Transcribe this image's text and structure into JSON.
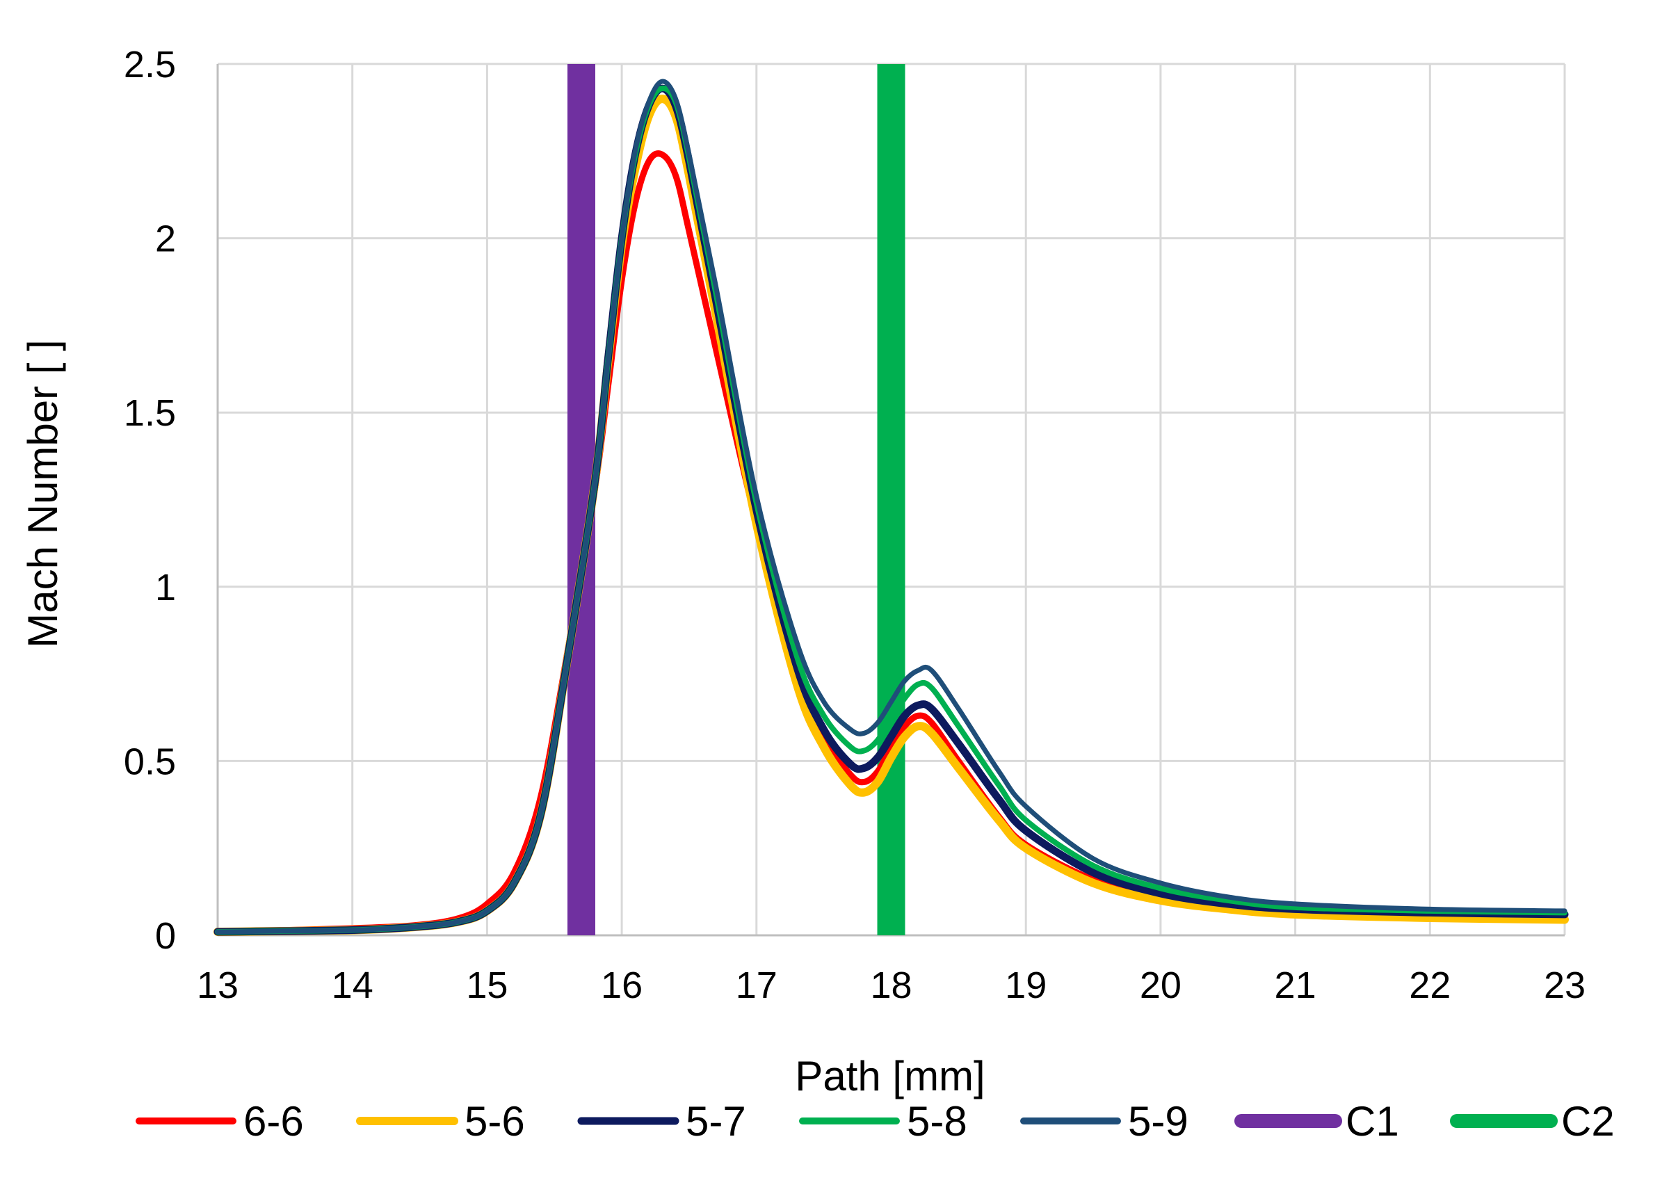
{
  "chart_data": {
    "type": "line",
    "title": "",
    "xlabel": "Path [mm]",
    "ylabel": "Mach Number [ ]",
    "xlim": [
      13,
      23
    ],
    "ylim": [
      0,
      2.5
    ],
    "xticks": [
      13,
      14,
      15,
      16,
      17,
      18,
      19,
      20,
      21,
      22,
      23
    ],
    "xtick_labels": [
      "13",
      "14",
      "15",
      "16",
      "17",
      "18",
      "19",
      "20",
      "21",
      "22",
      "23"
    ],
    "yticks": [
      0,
      0.5,
      1,
      1.5,
      2,
      2.5
    ],
    "ytick_labels": [
      "0",
      "0.5",
      "1",
      "1.5",
      "2",
      "2.5"
    ],
    "grid": true,
    "legend_position": "bottom",
    "series": [
      {
        "name": "6-6",
        "color": "#ff0000",
        "width": 9,
        "x": [
          13,
          14,
          14.5,
          14.8,
          15,
          15.2,
          15.4,
          15.6,
          15.8,
          15.9,
          16,
          16.1,
          16.2,
          16.3,
          16.4,
          16.5,
          16.7,
          17,
          17.3,
          17.5,
          17.7,
          17.8,
          17.9,
          18,
          18.1,
          18.2,
          18.3,
          18.5,
          18.8,
          19,
          19.5,
          20,
          20.5,
          21,
          22,
          23
        ],
        "y": [
          0.01,
          0.02,
          0.03,
          0.05,
          0.09,
          0.18,
          0.4,
          0.82,
          1.28,
          1.58,
          1.88,
          2.1,
          2.22,
          2.24,
          2.18,
          2.02,
          1.68,
          1.18,
          0.75,
          0.57,
          0.46,
          0.44,
          0.47,
          0.54,
          0.6,
          0.63,
          0.61,
          0.5,
          0.34,
          0.26,
          0.16,
          0.11,
          0.08,
          0.065,
          0.055,
          0.05
        ]
      },
      {
        "name": "5-6",
        "color": "#ffc000",
        "width": 12,
        "x": [
          13,
          14,
          14.5,
          14.8,
          15,
          15.2,
          15.4,
          15.6,
          15.8,
          15.9,
          16,
          16.1,
          16.2,
          16.3,
          16.4,
          16.5,
          16.7,
          17,
          17.3,
          17.5,
          17.7,
          17.8,
          17.9,
          18,
          18.1,
          18.2,
          18.3,
          18.5,
          18.8,
          19,
          19.5,
          20,
          20.5,
          21,
          22,
          23
        ],
        "y": [
          0.01,
          0.015,
          0.025,
          0.04,
          0.07,
          0.15,
          0.35,
          0.8,
          1.3,
          1.65,
          1.98,
          2.2,
          2.35,
          2.4,
          2.35,
          2.18,
          1.78,
          1.18,
          0.72,
          0.54,
          0.43,
          0.41,
          0.44,
          0.51,
          0.57,
          0.6,
          0.58,
          0.48,
          0.33,
          0.25,
          0.15,
          0.1,
          0.075,
          0.06,
          0.05,
          0.045
        ]
      },
      {
        "name": "5-7",
        "color": "#0d1a5e",
        "width": 11,
        "x": [
          13,
          14,
          14.5,
          14.8,
          15,
          15.2,
          15.4,
          15.6,
          15.8,
          15.9,
          16,
          16.1,
          16.2,
          16.3,
          16.4,
          16.5,
          16.7,
          17,
          17.3,
          17.5,
          17.7,
          17.8,
          17.9,
          18,
          18.1,
          18.2,
          18.3,
          18.5,
          18.8,
          19,
          19.5,
          20,
          20.5,
          21,
          22,
          23
        ],
        "y": [
          0.01,
          0.015,
          0.025,
          0.04,
          0.07,
          0.15,
          0.35,
          0.8,
          1.3,
          1.66,
          2.0,
          2.24,
          2.38,
          2.43,
          2.38,
          2.22,
          1.82,
          1.22,
          0.77,
          0.59,
          0.49,
          0.48,
          0.51,
          0.57,
          0.63,
          0.66,
          0.65,
          0.55,
          0.39,
          0.3,
          0.18,
          0.12,
          0.09,
          0.075,
          0.065,
          0.06
        ]
      },
      {
        "name": "5-8",
        "color": "#00b050",
        "width": 8,
        "x": [
          13,
          14,
          14.5,
          14.8,
          15,
          15.2,
          15.4,
          15.6,
          15.8,
          15.9,
          16,
          16.1,
          16.2,
          16.3,
          16.4,
          16.5,
          16.7,
          17,
          17.3,
          17.5,
          17.7,
          17.8,
          17.9,
          18,
          18.1,
          18.2,
          18.3,
          18.5,
          18.8,
          19,
          19.5,
          20,
          20.5,
          21,
          22,
          23
        ],
        "y": [
          0.01,
          0.015,
          0.025,
          0.04,
          0.07,
          0.15,
          0.35,
          0.8,
          1.3,
          1.66,
          2.0,
          2.24,
          2.38,
          2.43,
          2.39,
          2.23,
          1.84,
          1.24,
          0.8,
          0.63,
          0.54,
          0.53,
          0.56,
          0.62,
          0.68,
          0.72,
          0.71,
          0.6,
          0.43,
          0.33,
          0.2,
          0.135,
          0.1,
          0.08,
          0.07,
          0.065
        ]
      },
      {
        "name": "5-9",
        "color": "#1f4e79",
        "width": 7,
        "x": [
          13,
          14,
          14.5,
          14.8,
          15,
          15.2,
          15.4,
          15.6,
          15.8,
          15.9,
          16,
          16.1,
          16.2,
          16.3,
          16.4,
          16.5,
          16.7,
          17,
          17.3,
          17.5,
          17.7,
          17.8,
          17.9,
          18,
          18.1,
          18.2,
          18.3,
          18.5,
          18.8,
          19,
          19.5,
          20,
          20.5,
          21,
          22,
          23
        ],
        "y": [
          0.01,
          0.015,
          0.025,
          0.04,
          0.07,
          0.15,
          0.35,
          0.8,
          1.3,
          1.66,
          2.0,
          2.25,
          2.39,
          2.45,
          2.4,
          2.24,
          1.86,
          1.26,
          0.84,
          0.67,
          0.59,
          0.58,
          0.61,
          0.67,
          0.73,
          0.76,
          0.76,
          0.65,
          0.47,
          0.37,
          0.22,
          0.15,
          0.11,
          0.09,
          0.075,
          0.07
        ]
      },
      {
        "name": "C1",
        "color": "#7030a0",
        "width": 40,
        "x": [
          15.7,
          15.7
        ],
        "y": [
          0,
          2.5
        ]
      },
      {
        "name": "C2",
        "color": "#00b050",
        "width": 40,
        "x": [
          18.0,
          18.0
        ],
        "y": [
          0,
          2.5
        ]
      }
    ]
  }
}
